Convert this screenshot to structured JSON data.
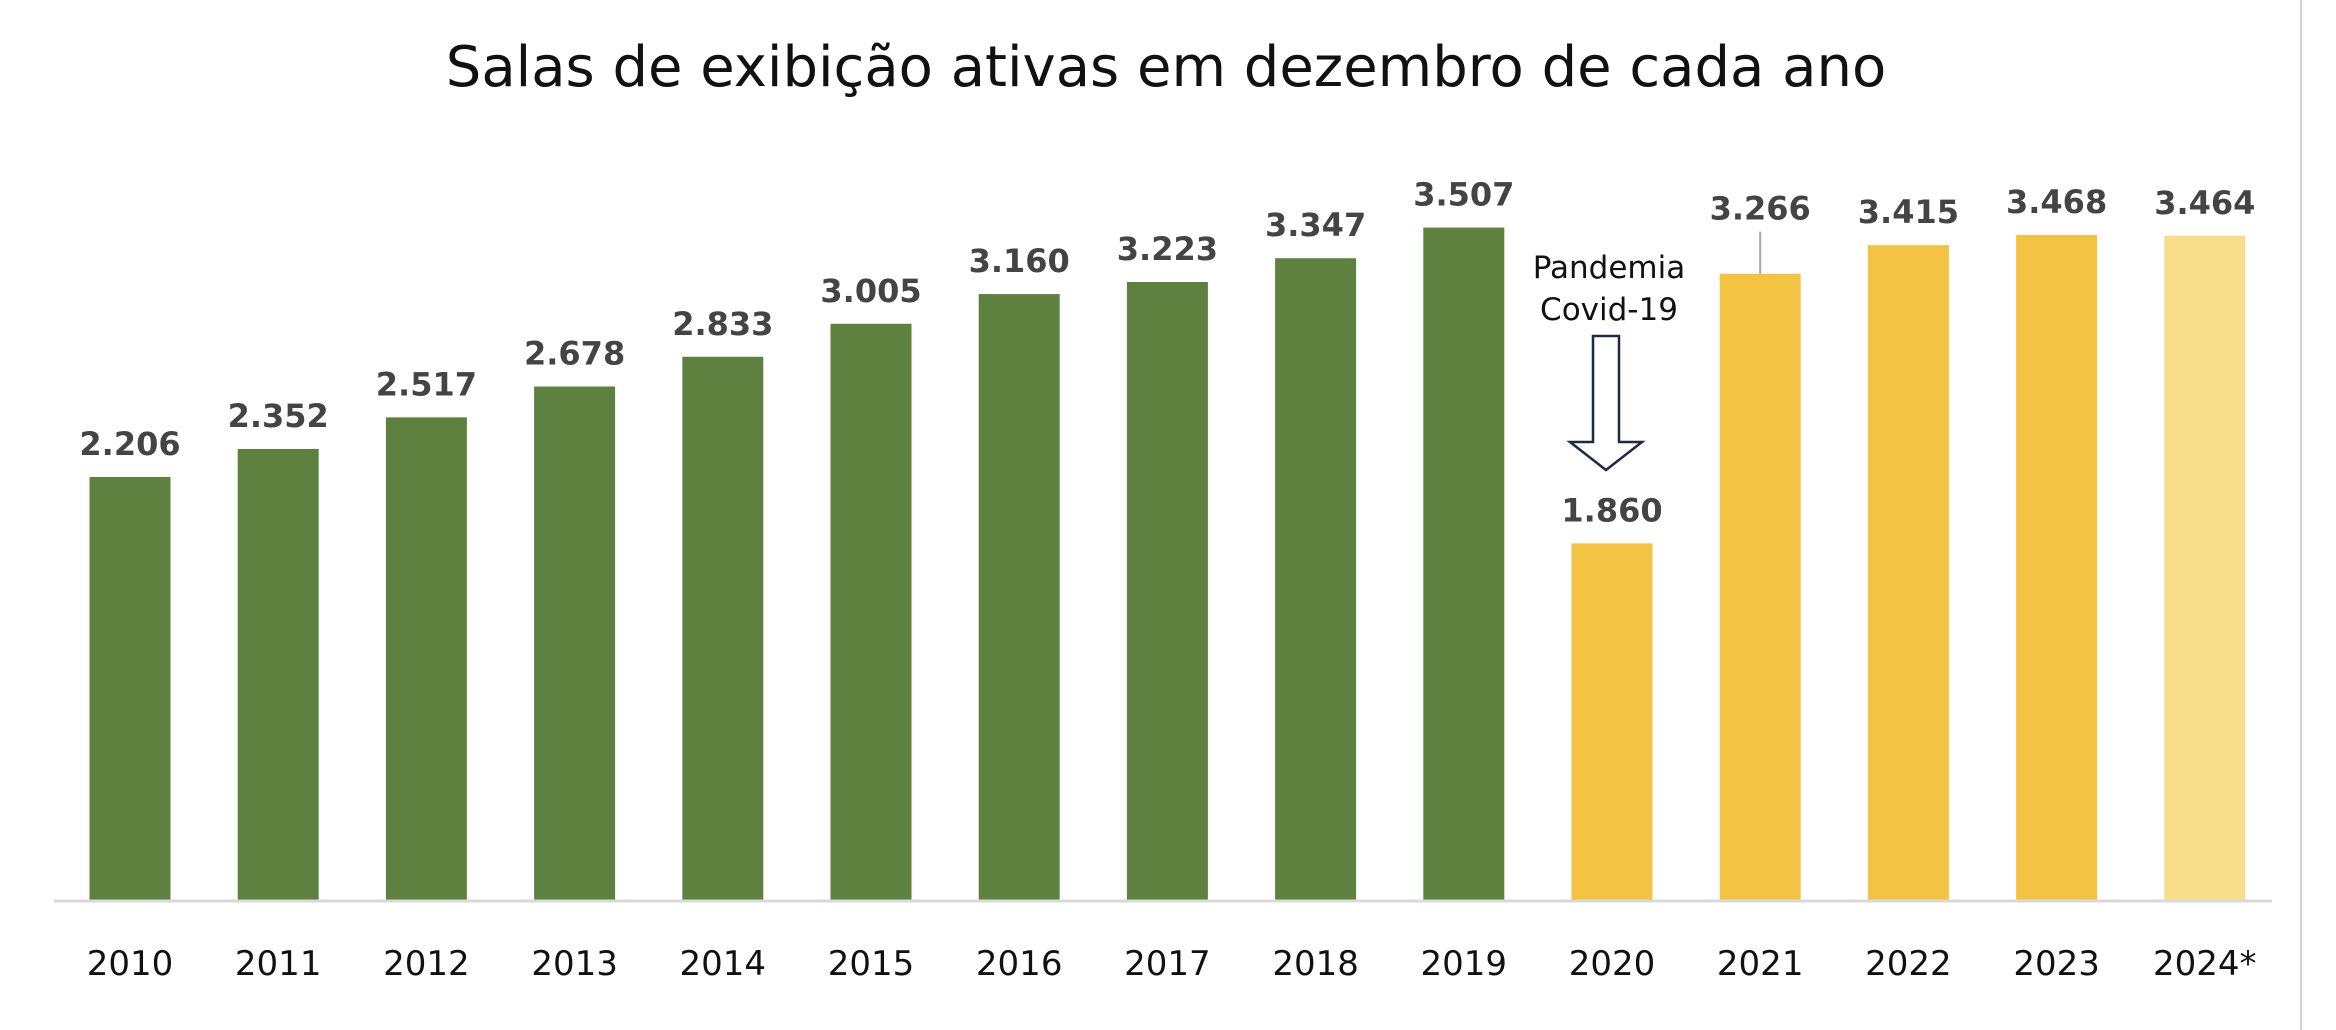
{
  "chart_data": {
    "type": "bar",
    "title": "Salas de exibição ativas em dezembro de cada ano",
    "categories": [
      "2010",
      "2011",
      "2012",
      "2013",
      "2014",
      "2015",
      "2016",
      "2017",
      "2018",
      "2019",
      "2020",
      "2021",
      "2022",
      "2023",
      "2024*"
    ],
    "values": [
      2206,
      2352,
      2517,
      2678,
      2833,
      3005,
      3160,
      3223,
      3347,
      3507,
      1860,
      3266,
      3415,
      3468,
      3464
    ],
    "data_labels": [
      "2.206",
      "2.352",
      "2.517",
      "2.678",
      "2.833",
      "3.005",
      "3.160",
      "3.223",
      "3.347",
      "3.507",
      "1.860",
      "3.266",
      "3.415",
      "3.468",
      "3.464"
    ],
    "bar_colors": [
      "#5E813F",
      "#5E813F",
      "#5E813F",
      "#5E813F",
      "#5E813F",
      "#5E813F",
      "#5E813F",
      "#5E813F",
      "#5E813F",
      "#5E813F",
      "#F3C343",
      "#F3C343",
      "#F3C343",
      "#F3C343",
      "#F8DE8A"
    ],
    "xlabel": "",
    "ylabel": "",
    "ylim": [
      0,
      3600
    ],
    "grid": false,
    "legend": "none",
    "annotation": {
      "lines": [
        "Pandemia",
        "Covid-19"
      ],
      "target": "2020",
      "icon": "down-arrow-icon"
    }
  }
}
